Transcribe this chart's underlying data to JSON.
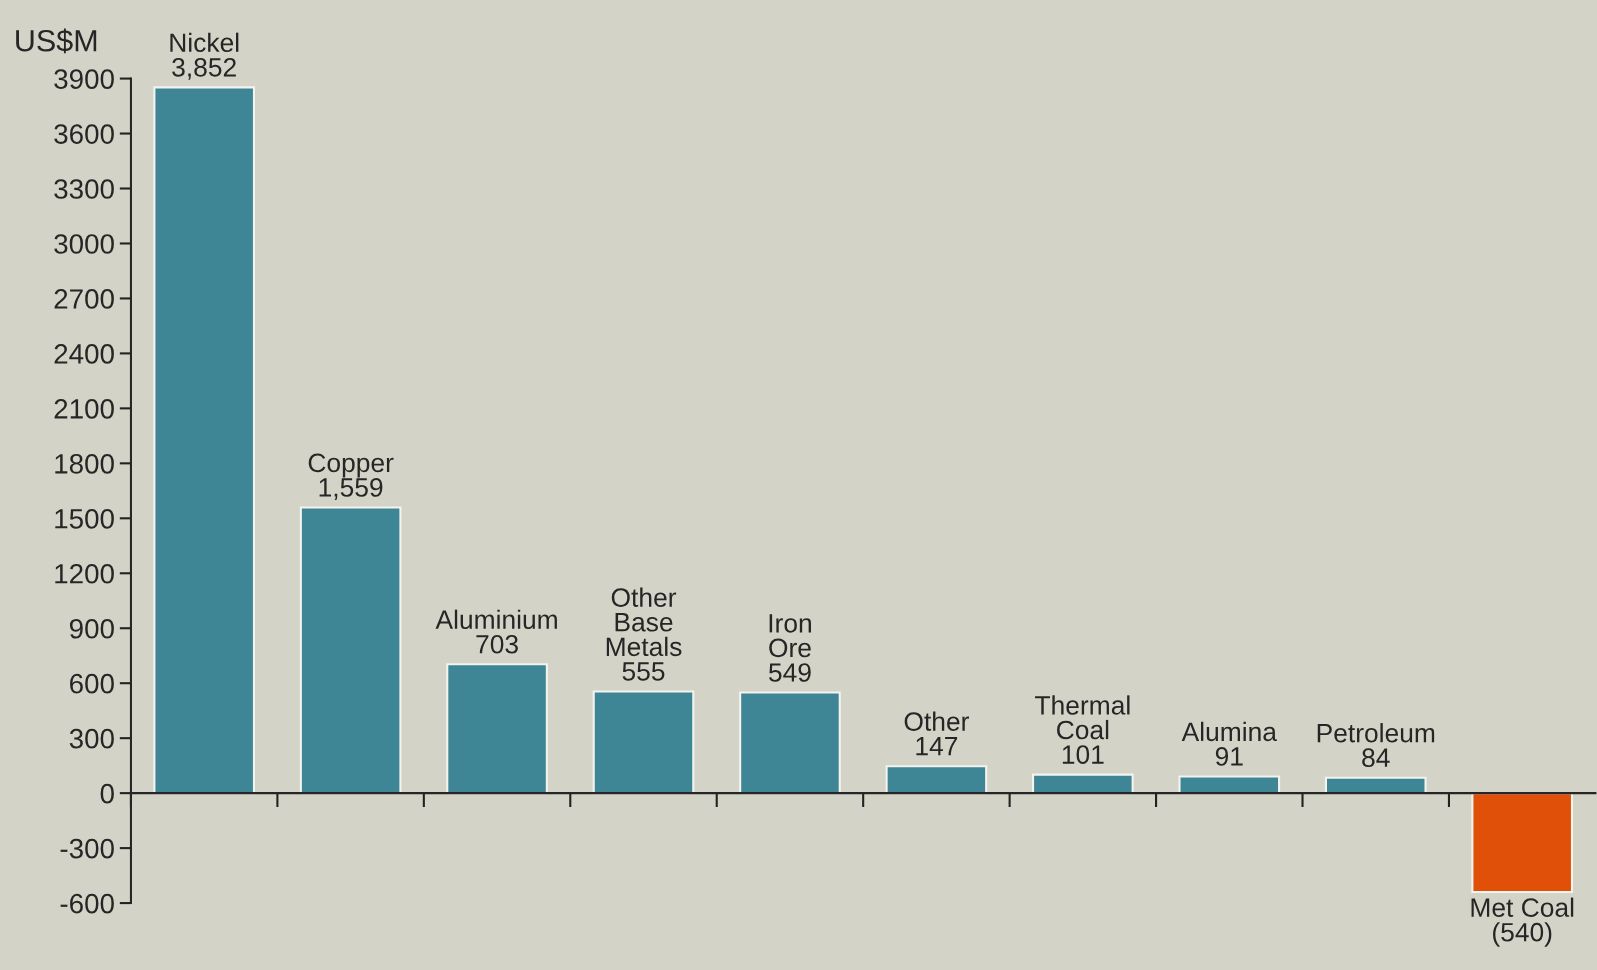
{
  "chart_data": {
    "type": "bar",
    "ylabel": "US$M",
    "categories": [
      "Nickel",
      "Copper",
      "Aluminium",
      "Other\nBase\nMetals",
      "Iron\nOre",
      "Other",
      "Thermal\nCoal",
      "Alumina",
      "Petroleum",
      "Met Coal"
    ],
    "values": [
      3852,
      1559,
      703,
      555,
      549,
      147,
      101,
      91,
      84,
      -540
    ],
    "value_labels": [
      "3,852",
      "1,559",
      "703",
      "555",
      "549",
      "147",
      "101",
      "91",
      "84",
      "(540)"
    ],
    "colors": [
      "#3e8595",
      "#3e8595",
      "#3e8595",
      "#3e8595",
      "#3e8595",
      "#3e8595",
      "#3e8595",
      "#3e8595",
      "#3e8595",
      "#e05008"
    ],
    "ylim": [
      -600,
      3900
    ],
    "yticks": [
      -600,
      -300,
      0,
      300,
      600,
      900,
      1200,
      1500,
      1800,
      2100,
      2400,
      2700,
      3000,
      3300,
      3600,
      3900
    ],
    "grid": false,
    "legend": false
  }
}
